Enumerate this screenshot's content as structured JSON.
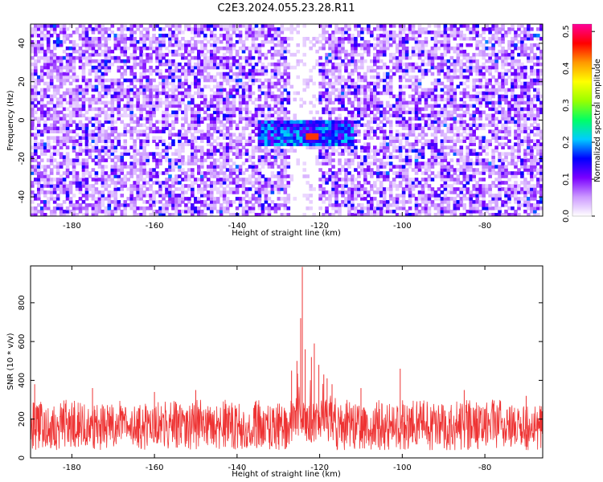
{
  "figure": {
    "title": "C2E3.2024.055.23.28.R11"
  },
  "chart_data": [
    {
      "type": "heatmap",
      "xlabel": "Height of straight line (km)",
      "ylabel": "Frequency (Hz)",
      "xlim": [
        -190,
        -66
      ],
      "ylim": [
        -50,
        50
      ],
      "xticks": [
        "-180",
        "-160",
        "-140",
        "-120",
        "-100",
        "-80"
      ],
      "xtick_values": [
        -180,
        -160,
        -140,
        -120,
        -100,
        -80
      ],
      "yticks": [
        "-40",
        "-20",
        "0",
        "20",
        "40"
      ],
      "ytick_values": [
        -40,
        -20,
        0,
        20,
        40
      ],
      "colorbar": {
        "label": "Normalized spectral amplitude",
        "range": [
          0,
          0.52
        ],
        "ticks": [
          "0.0",
          "0.1",
          "0.2",
          "0.3",
          "0.4",
          "0.5"
        ],
        "tick_values": [
          0.0,
          0.1,
          0.2,
          0.3,
          0.4,
          0.5
        ],
        "colormap": [
          "#ffffff",
          "#cc99ff",
          "#7a00ff",
          "#0000ff",
          "#00ccff",
          "#00ff66",
          "#99ff00",
          "#ffff00",
          "#ff9900",
          "#ff0000",
          "#ff0099"
        ]
      },
      "features": {
        "background_amplitude": [
          0.0,
          0.12
        ],
        "peak_region_height_km": [
          -135,
          -112
        ],
        "peak_region_frequency_hz": [
          -14,
          0
        ],
        "peak_height_km": -122,
        "peak_frequency_hz": -8,
        "peak_amplitude": 0.45,
        "gap_height_km": [
          -127,
          -120
        ]
      },
      "grid": false
    },
    {
      "type": "line",
      "xlabel": "Height of straight line (km)",
      "ylabel": "SNR (10 * v/v)",
      "xlim": [
        -190,
        -66
      ],
      "ylim": [
        0,
        990
      ],
      "xticks": [
        "-180",
        "-160",
        "-140",
        "-120",
        "-100",
        "-80"
      ],
      "xtick_values": [
        -180,
        -160,
        -140,
        -120,
        -100,
        -80
      ],
      "yticks": [
        "0",
        "200",
        "400",
        "600",
        "800"
      ],
      "ytick_values": [
        0,
        200,
        400,
        600,
        800
      ],
      "series": [
        {
          "color": "#ee3333",
          "baseline_range": [
            40,
            280
          ],
          "envelope_max": 300,
          "spikes": [
            {
              "x": -124.2,
              "y": 985
            },
            {
              "x": -124.6,
              "y": 720
            },
            {
              "x": -123.5,
              "y": 560
            },
            {
              "x": -121.3,
              "y": 590
            },
            {
              "x": -122.0,
              "y": 520
            },
            {
              "x": -125.5,
              "y": 500
            },
            {
              "x": -120.2,
              "y": 480
            },
            {
              "x": -119.0,
              "y": 430
            },
            {
              "x": -118.2,
              "y": 410
            },
            {
              "x": -126.8,
              "y": 450
            },
            {
              "x": -117.0,
              "y": 380
            },
            {
              "x": -100.5,
              "y": 460
            },
            {
              "x": -189.0,
              "y": 380
            },
            {
              "x": -175.0,
              "y": 360
            },
            {
              "x": -160.0,
              "y": 340
            },
            {
              "x": -150.0,
              "y": 350
            },
            {
              "x": -110.0,
              "y": 360
            },
            {
              "x": -85.0,
              "y": 350
            },
            {
              "x": -70.0,
              "y": 320
            }
          ]
        }
      ],
      "grid": false
    }
  ]
}
